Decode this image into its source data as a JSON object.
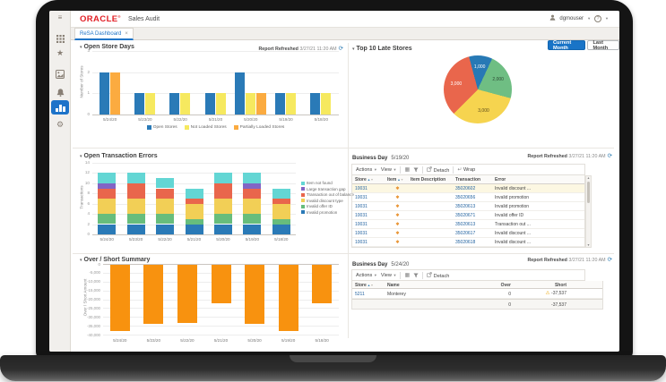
{
  "header": {
    "logo": "ORACLE",
    "logo_mark": "®",
    "app_title": "Sales Audit",
    "user": "dgmouser",
    "help": "?"
  },
  "tab": {
    "label": "ReSA Dashboard",
    "close": "×"
  },
  "common": {
    "report_refreshed_label": "Report Refreshed",
    "report_refreshed_value": "3/27/21 11:20 AM",
    "business_day_label": "Business Day"
  },
  "panels": {
    "open_store_days": {
      "title": "Open Store Days"
    },
    "top_10_late_stores": {
      "title": "Top 10 Late Stores",
      "current_month": "Current Month",
      "last_month": "Last Month"
    },
    "open_transaction_errors": {
      "title": "Open Transaction Errors"
    },
    "over_short_summary": {
      "title": "Over / Short Summary"
    }
  },
  "icons": {
    "sidebar": [
      "menu-icon",
      "apps-grid-icon",
      "favorites-star-icon",
      "reports-icon",
      "notifications-bell-icon",
      "dashboard-chart-icon",
      "settings-gear-icon"
    ],
    "header": [
      "user-icon",
      "help-icon"
    ],
    "table_toolbar": [
      "export-table-icon",
      "filter-funnel-icon",
      "detach-icon",
      "wrap-icon"
    ],
    "other": [
      "refresh-icon",
      "warning-icon",
      "sort-ascending-icon",
      "sort-descending-icon"
    ]
  },
  "errors_table": {
    "business_day": "5/19/20",
    "toolbar": {
      "actions": "Actions",
      "view": "View",
      "detach": "Detach",
      "wrap": "Wrap"
    },
    "columns": [
      "Store",
      "Item",
      "Item Description",
      "Transaction",
      "Error"
    ],
    "item_flag": "✱",
    "rows": [
      {
        "store": "10031",
        "item_description": "",
        "transaction": "35020602",
        "error": "Invalid discount ..."
      },
      {
        "store": "10031",
        "item_description": "",
        "transaction": "35020656",
        "error": "Invalid promotion"
      },
      {
        "store": "10031",
        "item_description": "",
        "transaction": "35020613",
        "error": "Invalid promotion"
      },
      {
        "store": "10031",
        "item_description": "",
        "transaction": "35020671",
        "error": "Invalid offer ID"
      },
      {
        "store": "10031",
        "item_description": "",
        "transaction": "35020613",
        "error": "Transaction out ..."
      },
      {
        "store": "10031",
        "item_description": "",
        "transaction": "35020617",
        "error": "Invalid discount ..."
      },
      {
        "store": "10031",
        "item_description": "",
        "transaction": "35020618",
        "error": "Invalid discount ..."
      }
    ]
  },
  "over_short_table": {
    "business_day": "5/24/20",
    "toolbar": {
      "actions": "Actions",
      "view": "View",
      "detach": "Detach"
    },
    "columns": [
      "Store",
      "Name",
      "Over",
      "Short"
    ],
    "rows": [
      {
        "store": "5211",
        "name": "Monterey",
        "over": "0",
        "short": "-37,537",
        "warning": true
      }
    ],
    "summary": {
      "over": "0",
      "short": "-37,537"
    }
  },
  "chart_data": [
    {
      "id": "open_store_days",
      "type": "bar",
      "title": "Open Store Days",
      "xlabel": "",
      "ylabel": "Number of Stores",
      "ylim": [
        0,
        3
      ],
      "yticks": [
        0,
        1,
        2,
        3
      ],
      "categories": [
        "5/24/20",
        "5/23/20",
        "5/22/20",
        "5/21/20",
        "5/20/20",
        "5/19/20",
        "5/18/20"
      ],
      "series": [
        {
          "name": "Open Stores",
          "color": "#2a7ab7",
          "values": [
            2,
            1,
            1,
            1,
            2,
            1,
            1
          ]
        },
        {
          "name": "Not Loaded Stores",
          "color": "#f6e95f",
          "values": [
            0,
            1,
            1,
            1,
            1,
            1,
            1
          ]
        },
        {
          "name": "Partially Loaded Stores",
          "color": "#fbab40",
          "values": [
            2,
            0,
            0,
            0,
            1,
            0,
            0
          ]
        }
      ],
      "legend_position": "bottom",
      "grid": true
    },
    {
      "id": "top_10_late_stores",
      "type": "pie",
      "title": "Top 10 Late Stores",
      "start_angle": -15,
      "slices": [
        {
          "label": "1,000",
          "value": 1000,
          "color": "#2779b5",
          "label_color": "#ffffff"
        },
        {
          "label": "2,000",
          "value": 2000,
          "color": "#6fbe83",
          "label_color": "#2c4a33"
        },
        {
          "label": "3,000",
          "value": 3000,
          "color": "#f6d44f",
          "label_color": "#5a4a1a"
        },
        {
          "label": "3,000",
          "value": 3000,
          "color": "#e9664c",
          "label_color": "#ffffff"
        }
      ]
    },
    {
      "id": "open_transaction_errors",
      "type": "stacked_bar",
      "title": "Open Transaction Errors",
      "xlabel": "",
      "ylabel": "Transactions",
      "ylim": [
        0,
        14
      ],
      "yticks": [
        0,
        2,
        4,
        6,
        8,
        10,
        12,
        14
      ],
      "categories": [
        "5/24/20",
        "5/23/20",
        "5/22/20",
        "5/21/20",
        "5/20/20",
        "5/19/20",
        "5/18/20"
      ],
      "series": [
        {
          "name": "Invalid promotion",
          "color": "#2a7ab7",
          "values": [
            2,
            2,
            2,
            2,
            2,
            2,
            2
          ]
        },
        {
          "name": "Invalid offer ID",
          "color": "#67bd7c",
          "values": [
            2,
            2,
            2,
            1,
            2,
            2,
            1
          ]
        },
        {
          "name": "Invalid discount type",
          "color": "#f2cf56",
          "values": [
            3,
            3,
            3,
            3,
            3,
            3,
            3
          ]
        },
        {
          "name": "Transaction out of balance",
          "color": "#e9664c",
          "values": [
            2,
            3,
            2,
            1,
            3,
            2,
            1
          ]
        },
        {
          "name": "Large transaction gap",
          "color": "#8265c5",
          "values": [
            1,
            0,
            0,
            0,
            0,
            1,
            0
          ]
        },
        {
          "name": "Item not found",
          "color": "#63d6d4",
          "values": [
            2,
            2,
            2,
            2,
            2,
            2,
            2
          ]
        }
      ],
      "legend_position": "right",
      "grid": true
    },
    {
      "id": "over_short_summary",
      "type": "bar",
      "title": "Over / Short Summary",
      "xlabel": "",
      "ylabel": "Over / Short Amount",
      "ylim": [
        -40000,
        0
      ],
      "yticks": [
        0,
        -5000,
        -10000,
        -15000,
        -20000,
        -25000,
        -30000,
        -35000,
        -40000
      ],
      "ytick_labels": [
        "0",
        "-5,000",
        "-10,000",
        "-15,000",
        "-20,000",
        "-25,000",
        "-30,000",
        "-35,000",
        "-40,000"
      ],
      "categories": [
        "5/24/20",
        "5/23/20",
        "5/22/20",
        "5/21/20",
        "5/20/20",
        "5/19/20",
        "5/18/20"
      ],
      "values": [
        -37537,
        -33500,
        -33000,
        -21500,
        -33500,
        -37500,
        -21500
      ],
      "color": "#f8920f",
      "grid": true
    }
  ]
}
